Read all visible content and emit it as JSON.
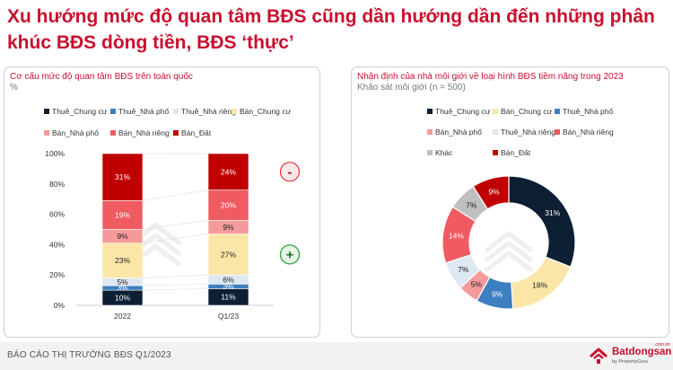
{
  "header": {
    "title": "Xu hướng mức độ quan tâm BĐS cũng dần hướng dần đến những phân khúc BĐS dòng tiền, BĐS ‘thực’"
  },
  "chart_data": [
    {
      "type": "bar",
      "stacked": true,
      "title": "Cơ cấu mức độ quan tâm BĐS trên toàn quốc",
      "subtitle": "%",
      "categories": [
        "2022",
        "Q1/23"
      ],
      "ylim": [
        0,
        100
      ],
      "ytick_labels": [
        "0%",
        "20%",
        "40%",
        "60%",
        "80%",
        "100%"
      ],
      "legend_position": "top",
      "series": [
        {
          "name": "Thuê_Chung cư",
          "color": "#0d1f33",
          "values": [
            10,
            11
          ],
          "labels": [
            "10%",
            "11%"
          ]
        },
        {
          "name": "Thuê_Nhà phố",
          "color": "#3d7fc1",
          "values": [
            3,
            3
          ],
          "labels": [
            "3%",
            "3%"
          ]
        },
        {
          "name": "Thuê_Nhà riêng",
          "color": "#dde8f2",
          "values": [
            5,
            6
          ],
          "labels": [
            "5%",
            "6%"
          ]
        },
        {
          "name": "Bán_Chung cư",
          "color": "#fbe6a8",
          "values": [
            23,
            27
          ],
          "labels": [
            "23%",
            "27%"
          ]
        },
        {
          "name": "Bán_Nhà phố",
          "color": "#f59a9a",
          "values": [
            9,
            9
          ],
          "labels": [
            "9%",
            "9%"
          ]
        },
        {
          "name": "Bán_Nhà riêng",
          "color": "#ef5b60",
          "values": [
            19,
            20
          ],
          "labels": [
            "19%",
            "20%"
          ]
        },
        {
          "name": "Bán_Đất",
          "color": "#c00000",
          "values": [
            31,
            24
          ],
          "labels": [
            "31%",
            "24%"
          ]
        }
      ],
      "annotations": [
        {
          "symbol": "-",
          "target_series": "Bán_Đất",
          "color": "#e0404a"
        },
        {
          "symbol": "+",
          "target_series": "Bán_Chung cư",
          "color": "#2e9e3e"
        }
      ]
    },
    {
      "type": "pie",
      "donut": true,
      "title": "Nhận định của nhà môi giới về loại hình BĐS tiềm năng trong 2023",
      "subtitle": "Khảo sát môi giới (n = 500)",
      "legend_position": "top",
      "slices": [
        {
          "name": "Thuê_Chung cư",
          "value": 31,
          "label": "31%",
          "color": "#0d1f33"
        },
        {
          "name": "Bán_Chung cư",
          "value": 18,
          "label": "18%",
          "color": "#fbe6a8"
        },
        {
          "name": "Thuê_Nhà phố",
          "value": 9,
          "label": "9%",
          "color": "#3d7fc1"
        },
        {
          "name": "Bán_Nhà phố",
          "value": 5,
          "label": "5%",
          "color": "#f59a9a"
        },
        {
          "name": "Thuê_Nhà riêng",
          "value": 7,
          "label": "7%",
          "color": "#dde8f2"
        },
        {
          "name": "Bán_Nhà riêng",
          "value": 14,
          "label": "14%",
          "color": "#ef5b60"
        },
        {
          "name": "Khác",
          "value": 7,
          "label": "7%",
          "color": "#bfbfbf"
        },
        {
          "name": "Bán_Đất",
          "value": 9,
          "label": "9%",
          "color": "#c00000"
        }
      ]
    }
  ],
  "footer": {
    "report_label": "BÁO CÁO THỊ TRƯỜNG BĐS Q1/2023",
    "brand_name": "Batdongsan",
    "brand_suffix": ".com.vn",
    "brand_by": "by PropertyGuru",
    "brand_color": "#c8102e"
  },
  "icons": {
    "brand_logo": "house-roof-icon",
    "watermark": "stacked-chevron-logo-icon"
  }
}
